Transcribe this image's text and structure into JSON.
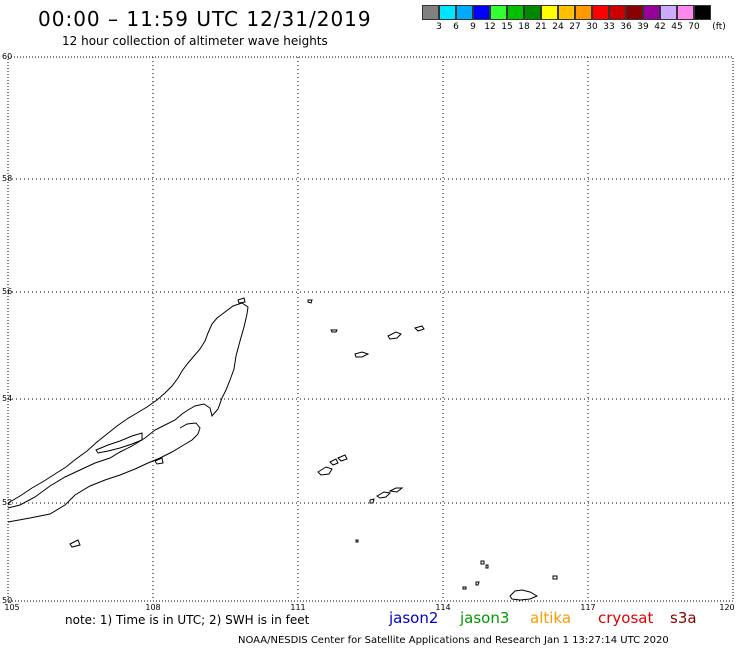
{
  "title": "00:00 – 11:59 UTC 12/31/2019",
  "subtitle": "12 hour collection of altimeter wave heights",
  "legend": {
    "colors": [
      "#808080",
      "#00e5ff",
      "#00aaff",
      "#0000ff",
      "#33ff33",
      "#00c000",
      "#008800",
      "#ffff00",
      "#ffc000",
      "#ff9900",
      "#ff0000",
      "#cc0000",
      "#880000",
      "#990099",
      "#ccaaff",
      "#ff88ee",
      "#000000"
    ],
    "labels": [
      "3",
      "6",
      "9",
      "12",
      "15",
      "18",
      "21",
      "24",
      "27",
      "30",
      "33",
      "36",
      "39",
      "42",
      "45",
      "70"
    ],
    "unit": "(ft)"
  },
  "y_ticks": [
    "60",
    "58",
    "56",
    "54",
    "52",
    "50"
  ],
  "x_ticks": [
    "105",
    "108",
    "111",
    "114",
    "117",
    "120"
  ],
  "note": "note:  1) Time is in UTC;  2) SWH is in feet",
  "satellites": [
    {
      "name": "jason2",
      "color": "#0000cc"
    },
    {
      "name": "jason3",
      "color": "#009900"
    },
    {
      "name": "altika",
      "color": "#ff9900"
    },
    {
      "name": "cryosat",
      "color": "#dd0000"
    },
    {
      "name": "s3a",
      "color": "#880000"
    }
  ],
  "footer": "NOAA/NESDIS Center for Satellite Applications and Research    Jan  1 13:27:14 UTC 2020"
}
